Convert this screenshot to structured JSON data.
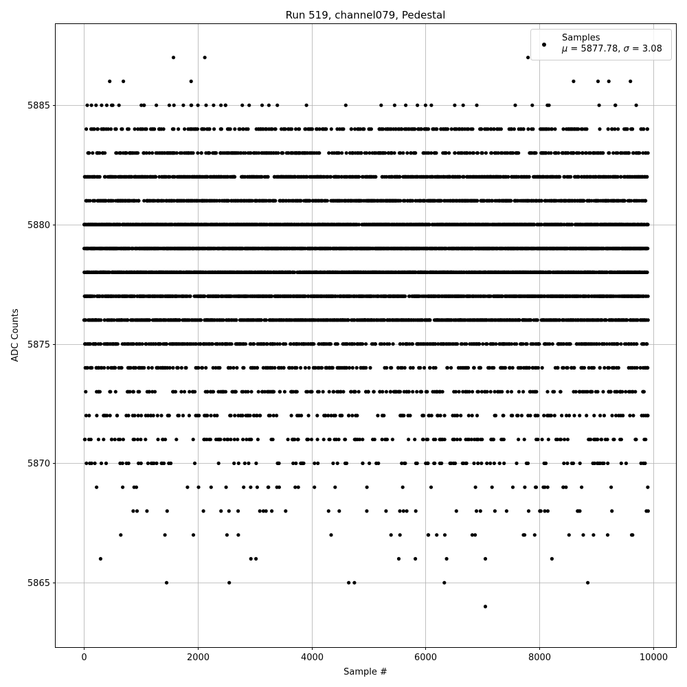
{
  "chart_data": {
    "type": "scatter",
    "title": "Run 519, channel079, Pedestal",
    "xlabel": "Sample #",
    "ylabel": "ADC Counts",
    "xlim": [
      -500,
      10400
    ],
    "ylim": [
      5862.3,
      5888.4
    ],
    "x_ticks": [
      0,
      2000,
      4000,
      6000,
      8000,
      10000
    ],
    "y_ticks": [
      5865,
      5870,
      5875,
      5880,
      5885
    ],
    "grid": true,
    "legend": {
      "placement": "top-right",
      "series_name": "Samples",
      "stats_mu": "5877.78",
      "stats_sigma": "3.08"
    },
    "marker_color": "#000000",
    "series": [
      {
        "name": "Samples",
        "sampling": "every sample index 0..9910, values approximating the observed band distribution",
        "n_samples": 9911,
        "value_levels": [
          5864,
          5865,
          5866,
          5867,
          5868,
          5869,
          5870,
          5871,
          5872,
          5873,
          5874,
          5875,
          5876,
          5877,
          5878,
          5879,
          5880,
          5881,
          5882,
          5883,
          5884,
          5885,
          5886,
          5887
        ],
        "level_weights": [
          1,
          4,
          8,
          10,
          18,
          40,
          80,
          110,
          150,
          200,
          260,
          420,
          700,
          1050,
          1300,
          1450,
          1300,
          800,
          650,
          330,
          240,
          50,
          14,
          4
        ],
        "outliers": [
          {
            "x": 1450,
            "y": 5865
          },
          {
            "x": 2550,
            "y": 5865
          },
          {
            "x": 4650,
            "y": 5865
          },
          {
            "x": 4750,
            "y": 5865
          },
          {
            "x": 6330,
            "y": 5865
          },
          {
            "x": 8850,
            "y": 5865
          },
          {
            "x": 7050,
            "y": 5864
          },
          {
            "x": 1570,
            "y": 5887
          },
          {
            "x": 2120,
            "y": 5887
          },
          {
            "x": 7800,
            "y": 5887
          },
          {
            "x": 450,
            "y": 5886
          },
          {
            "x": 690,
            "y": 5886
          },
          {
            "x": 1880,
            "y": 5886
          },
          {
            "x": 9030,
            "y": 5886
          },
          {
            "x": 9220,
            "y": 5886
          },
          {
            "x": 9600,
            "y": 5886
          },
          {
            "x": 8600,
            "y": 5886
          },
          {
            "x": 290,
            "y": 5866
          },
          {
            "x": 2930,
            "y": 5866
          },
          {
            "x": 3020,
            "y": 5866
          },
          {
            "x": 5530,
            "y": 5866
          },
          {
            "x": 5820,
            "y": 5866
          },
          {
            "x": 6370,
            "y": 5866
          },
          {
            "x": 7050,
            "y": 5866
          },
          {
            "x": 8220,
            "y": 5866
          },
          {
            "x": 1920,
            "y": 5867
          },
          {
            "x": 2510,
            "y": 5867
          },
          {
            "x": 2710,
            "y": 5867
          },
          {
            "x": 4340,
            "y": 5867
          },
          {
            "x": 5550,
            "y": 5867
          },
          {
            "x": 6050,
            "y": 5867
          },
          {
            "x": 6820,
            "y": 5867
          },
          {
            "x": 7720,
            "y": 5867
          },
          {
            "x": 8770,
            "y": 5867
          },
          {
            "x": 8950,
            "y": 5867
          }
        ]
      }
    ]
  }
}
